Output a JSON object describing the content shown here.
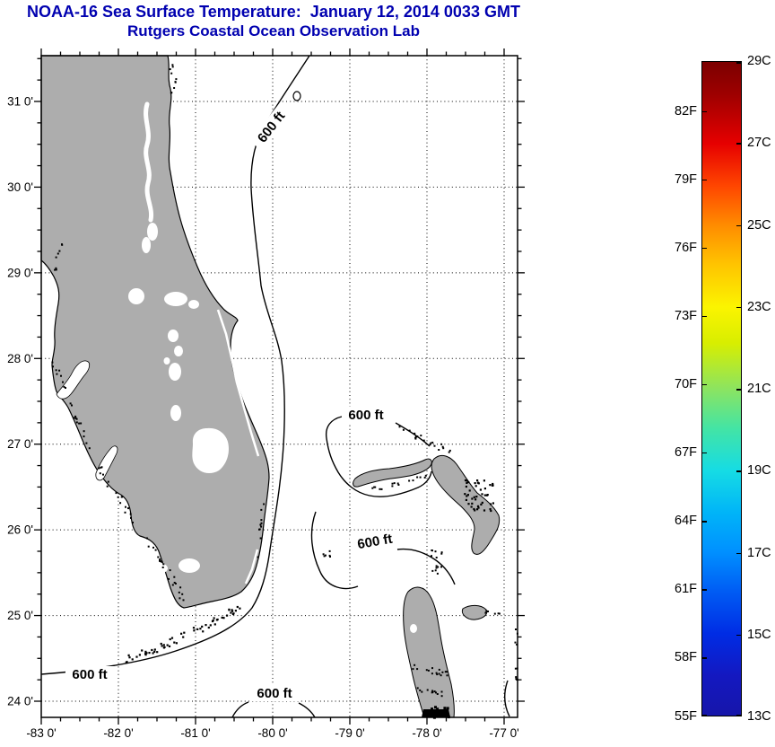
{
  "header": {
    "title": "NOAA-16 Sea Surface Temperature:  January 12, 2014 0033 GMT",
    "subtitle": "Rutgers Coastal Ocean Observation Lab"
  },
  "chart_data": {
    "type": "map",
    "region_shown": "Florida peninsula and northern Bahamas",
    "x_axis": {
      "ticks": [
        {
          "label": "-83 0'",
          "lon": -83
        },
        {
          "label": "-82 0'",
          "lon": -82
        },
        {
          "label": "-81 0'",
          "lon": -81
        },
        {
          "label": "-80 0'",
          "lon": -80
        },
        {
          "label": "-79 0'",
          "lon": -79
        },
        {
          "label": "-78 0'",
          "lon": -78
        },
        {
          "label": "-77 0'",
          "lon": -77
        }
      ],
      "minor_tick_minutes": 15
    },
    "y_axis": {
      "ticks": [
        {
          "label": "31 0'",
          "lat": 31
        },
        {
          "label": "30 0'",
          "lat": 30
        },
        {
          "label": "29 0'",
          "lat": 29
        },
        {
          "label": "28 0'",
          "lat": 28
        },
        {
          "label": "27 0'",
          "lat": 27
        },
        {
          "label": "26 0'",
          "lat": 26
        },
        {
          "label": "25 0'",
          "lat": 25
        },
        {
          "label": "24 0'",
          "lat": 24
        }
      ],
      "minor_tick_minutes": 15
    },
    "grid": {
      "style": "dotted",
      "interval_degrees": 1
    },
    "contour_label": "600 ft",
    "contour_label_count": 5,
    "colorbar": {
      "c_min": 13,
      "c_max": 29,
      "celsius_ticks": [
        {
          "label": "29C",
          "c": 29
        },
        {
          "label": "27C",
          "c": 27
        },
        {
          "label": "25C",
          "c": 25
        },
        {
          "label": "23C",
          "c": 23
        },
        {
          "label": "21C",
          "c": 21
        },
        {
          "label": "19C",
          "c": 19
        },
        {
          "label": "17C",
          "c": 17
        },
        {
          "label": "15C",
          "c": 15
        },
        {
          "label": "13C",
          "c": 13
        }
      ],
      "fahrenheit_ticks": [
        {
          "label": "82F",
          "f": 82
        },
        {
          "label": "79F",
          "f": 79
        },
        {
          "label": "76F",
          "f": 76
        },
        {
          "label": "73F",
          "f": 73
        },
        {
          "label": "70F",
          "f": 70
        },
        {
          "label": "67F",
          "f": 67
        },
        {
          "label": "64F",
          "f": 64
        },
        {
          "label": "61F",
          "f": 61
        },
        {
          "label": "58F",
          "f": 58
        },
        {
          "label": "55F",
          "f": 55
        }
      ],
      "gradient": [
        {
          "pct": 0,
          "color": "#7c0000"
        },
        {
          "pct": 5,
          "color": "#9e0000"
        },
        {
          "pct": 12.5,
          "color": "#e60000"
        },
        {
          "pct": 19,
          "color": "#ff4600"
        },
        {
          "pct": 25,
          "color": "#ff8c00"
        },
        {
          "pct": 31,
          "color": "#ffc400"
        },
        {
          "pct": 37.5,
          "color": "#fbf400"
        },
        {
          "pct": 43,
          "color": "#d8ee00"
        },
        {
          "pct": 50,
          "color": "#8ce460"
        },
        {
          "pct": 56,
          "color": "#44e4a4"
        },
        {
          "pct": 62.5,
          "color": "#16dce4"
        },
        {
          "pct": 69,
          "color": "#00b4f8"
        },
        {
          "pct": 75,
          "color": "#0090ff"
        },
        {
          "pct": 81,
          "color": "#005cf4"
        },
        {
          "pct": 87.5,
          "color": "#002ce4"
        },
        {
          "pct": 94,
          "color": "#1418c0"
        },
        {
          "pct": 100,
          "color": "#1616aa"
        }
      ]
    },
    "colors": {
      "title_text": "#0000b0",
      "land": "#adadad",
      "water": "#ffffff",
      "axis": "#000000"
    }
  }
}
